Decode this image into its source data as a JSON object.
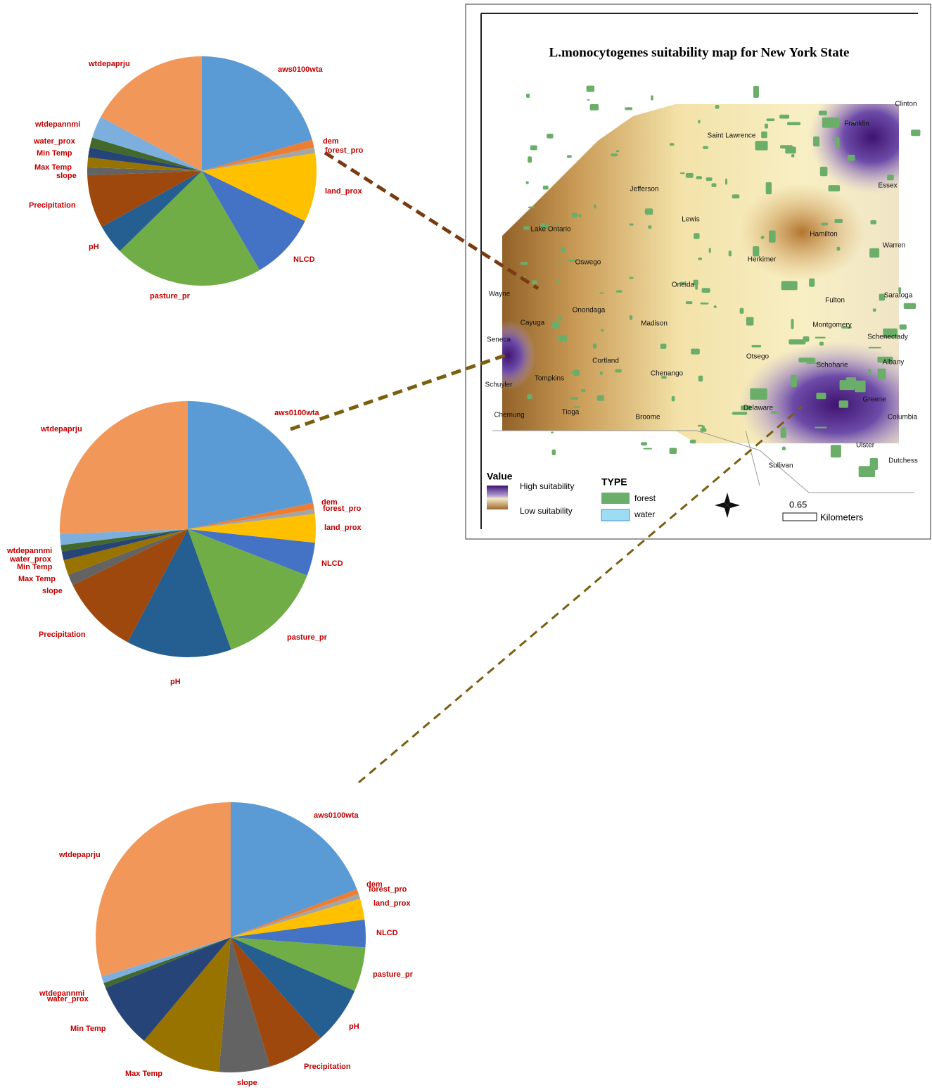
{
  "chart_data": [
    {
      "type": "pie",
      "categories": [
        "aws0100wta",
        "dem",
        "forest_pro",
        "land_prox",
        "NLCD",
        "pasture_pr",
        "pH",
        "Precipitation",
        "slope",
        "Max Temp",
        "Min Temp",
        "water_prox",
        "wtdepannmi",
        "wtdepaprju"
      ],
      "values": [
        20.6,
        1.1,
        0.8,
        9.7,
        9.4,
        21.1,
        4.2,
        7.5,
        1.1,
        1.4,
        1.4,
        1.4,
        3.1,
        17.2
      ],
      "colors": [
        "#5b9bd5",
        "#ed7d31",
        "#a5a5a5",
        "#ffc000",
        "#4472c4",
        "#70ad47",
        "#255e91",
        "#9e480e",
        "#636363",
        "#997300",
        "#264478",
        "#43682b",
        "#7cafdd",
        "#f1975a"
      ]
    },
    {
      "type": "pie",
      "categories": [
        "aws0100wta",
        "dem",
        "forest_pro",
        "land_prox",
        "NLCD",
        "pasture_pr",
        "pH",
        "Precipitation",
        "slope",
        "Max Temp",
        "Min Temp",
        "water_prox",
        "wtdepannmi",
        "wtdepaprju"
      ],
      "values": [
        21.7,
        0.8,
        0.6,
        3.6,
        4.2,
        13.6,
        13.3,
        10.0,
        1.4,
        1.9,
        1.1,
        0.8,
        1.4,
        25.6
      ],
      "colors": [
        "#5b9bd5",
        "#ed7d31",
        "#a5a5a5",
        "#ffc000",
        "#4472c4",
        "#70ad47",
        "#255e91",
        "#9e480e",
        "#636363",
        "#997300",
        "#264478",
        "#43682b",
        "#7cafdd",
        "#f1975a"
      ]
    },
    {
      "type": "pie",
      "categories": [
        "aws0100wta",
        "dem",
        "forest_pro",
        "land_prox",
        "NLCD",
        "pasture_pr",
        "pH",
        "Precipitation",
        "slope",
        "Max Temp",
        "Min Temp",
        "water_prox",
        "wtdepannmi",
        "wtdepaprju"
      ],
      "values": [
        19.2,
        0.6,
        0.6,
        2.5,
        3.3,
        5.3,
        6.9,
        6.9,
        6.1,
        9.7,
        7.8,
        0.6,
        0.8,
        29.7
      ],
      "colors": [
        "#5b9bd5",
        "#ed7d31",
        "#a5a5a5",
        "#ffc000",
        "#4472c4",
        "#70ad47",
        "#255e91",
        "#9e480e",
        "#636363",
        "#997300",
        "#264478",
        "#43682b",
        "#7cafdd",
        "#f1975a"
      ]
    }
  ],
  "map": {
    "title": "L.monocytogenes suitability map for New York State",
    "counties": [
      "Saint Lawrence",
      "Franklin",
      "Clinton",
      "Jefferson",
      "Lewis",
      "Essex",
      "Lake Ontario",
      "Hamilton",
      "Warren",
      "Oswego",
      "Herkimer",
      "Oneida",
      "Wayne",
      "Onondaga",
      "Fulton",
      "Saratoga",
      "Cayuga",
      "Madison",
      "Montgomery",
      "Schenectady",
      "Seneca",
      "Cortland",
      "Otsego",
      "Schoharie",
      "Albany",
      "Chenango",
      "Tompkins",
      "Schuyler",
      "Greene",
      "Delaware",
      "Tioga",
      "Chemung",
      "Broome",
      "Columbia",
      "Ulster",
      "Sullivan",
      "Dutchess"
    ],
    "legend": {
      "value_title": "Value",
      "high": "High suitability",
      "low": "Low suitability",
      "type_title": "TYPE",
      "forest": "forest",
      "water": "water"
    },
    "scale_value": "0.65",
    "scale_unit": "Kilometers"
  }
}
